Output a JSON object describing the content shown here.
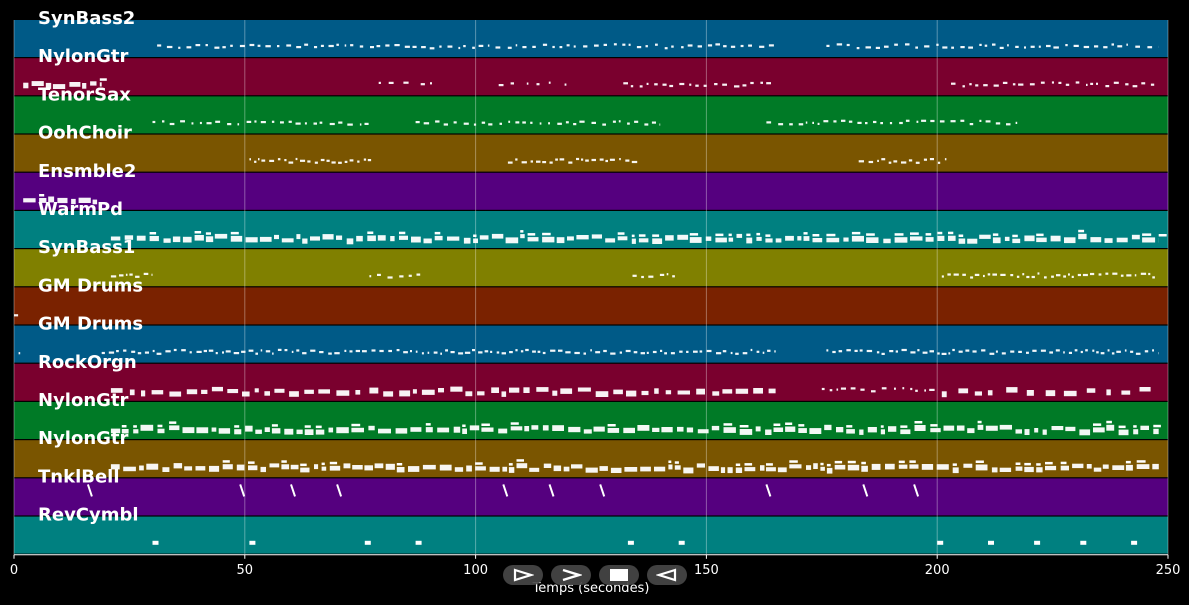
{
  "chart_data": {
    "type": "piano-roll",
    "xlabel": "Temps (secondes)",
    "xlim": [
      0,
      250
    ],
    "xticks": [
      0,
      50,
      100,
      150,
      200,
      250
    ],
    "grid": true,
    "tracks": [
      {
        "name": "SynBass2",
        "color": "#005a87",
        "segments": [
          {
            "start": 31,
            "end": 165,
            "density": "medium",
            "size": "small"
          },
          {
            "start": 176,
            "end": 248,
            "density": "medium",
            "size": "small"
          }
        ]
      },
      {
        "name": "NylonGtr",
        "color": "#7a002e",
        "segments": [
          {
            "start": 2,
            "end": 19,
            "density": "dense",
            "size": "large"
          },
          {
            "start": 79,
            "end": 91,
            "density": "sparse",
            "size": "small"
          },
          {
            "start": 105,
            "end": 120,
            "density": "sparse",
            "size": "small"
          },
          {
            "start": 132,
            "end": 164,
            "density": "medium",
            "size": "small"
          },
          {
            "start": 203,
            "end": 247,
            "density": "medium",
            "size": "small"
          }
        ]
      },
      {
        "name": "TenorSax",
        "color": "#007a26",
        "segments": [
          {
            "start": 30,
            "end": 78,
            "density": "medium",
            "size": "small"
          },
          {
            "start": 87,
            "end": 140,
            "density": "medium",
            "size": "small"
          },
          {
            "start": 163,
            "end": 218,
            "density": "medium",
            "size": "small"
          }
        ]
      },
      {
        "name": "OohChoir",
        "color": "#7a5500",
        "segments": [
          {
            "start": 51,
            "end": 78,
            "density": "dense",
            "size": "small"
          },
          {
            "start": 107,
            "end": 135,
            "density": "dense",
            "size": "small"
          },
          {
            "start": 183,
            "end": 202,
            "density": "dense",
            "size": "small"
          }
        ]
      },
      {
        "name": "Ensmble2",
        "color": "#55007f",
        "segments": [
          {
            "start": 2,
            "end": 18,
            "density": "dense",
            "size": "large"
          }
        ]
      },
      {
        "name": "WarmPd",
        "color": "#008080",
        "segments": [
          {
            "start": 21,
            "end": 248,
            "density": "dense",
            "size": "large"
          }
        ]
      },
      {
        "name": "SynBass1",
        "color": "#808000",
        "segments": [
          {
            "start": 21,
            "end": 30,
            "density": "dense",
            "size": "small"
          },
          {
            "start": 77,
            "end": 88,
            "density": "medium",
            "size": "small"
          },
          {
            "start": 134,
            "end": 144,
            "density": "medium",
            "size": "small"
          },
          {
            "start": 201,
            "end": 248,
            "density": "dense",
            "size": "small"
          }
        ]
      },
      {
        "name": "GM Drums",
        "color": "#7a2200",
        "segments": [
          {
            "start": 0,
            "end": 1,
            "density": "sparse",
            "size": "small"
          }
        ]
      },
      {
        "name": "GM Drums",
        "color": "#005a87",
        "segments": [
          {
            "start": 1,
            "end": 2,
            "density": "sparse",
            "size": "small"
          },
          {
            "start": 19,
            "end": 165,
            "density": "dense",
            "size": "small"
          },
          {
            "start": 176,
            "end": 248,
            "density": "dense",
            "size": "small"
          }
        ]
      },
      {
        "name": "RockOrgn",
        "color": "#7a002e",
        "segments": [
          {
            "start": 21,
            "end": 75,
            "density": "medium",
            "size": "large"
          },
          {
            "start": 77,
            "end": 165,
            "density": "medium",
            "size": "large"
          },
          {
            "start": 175,
            "end": 200,
            "density": "medium",
            "size": "small"
          },
          {
            "start": 201,
            "end": 248,
            "density": "sparse",
            "size": "large"
          }
        ]
      },
      {
        "name": "NylonGtr",
        "color": "#007a26",
        "segments": [
          {
            "start": 21,
            "end": 248,
            "density": "dense",
            "size": "large"
          }
        ]
      },
      {
        "name": "NylonGtr",
        "color": "#7a5500",
        "segments": [
          {
            "start": 21,
            "end": 248,
            "density": "dense",
            "size": "large"
          }
        ]
      },
      {
        "name": "TnklBell",
        "color": "#55007f",
        "strokes": [
          16,
          49,
          60,
          70,
          106,
          116,
          127,
          163,
          184,
          195
        ]
      },
      {
        "name": "RevCymbl",
        "color": "#008080",
        "notes": [
          30,
          51,
          76,
          87,
          133,
          144,
          200,
          211,
          221,
          231,
          242
        ]
      }
    ]
  },
  "controls": [
    {
      "name": "play-icon",
      "glyph": "⊳"
    },
    {
      "name": "forward-icon",
      "glyph": ">"
    },
    {
      "name": "stop-icon",
      "glyph": "■"
    },
    {
      "name": "rewind-icon",
      "glyph": "◅"
    }
  ]
}
